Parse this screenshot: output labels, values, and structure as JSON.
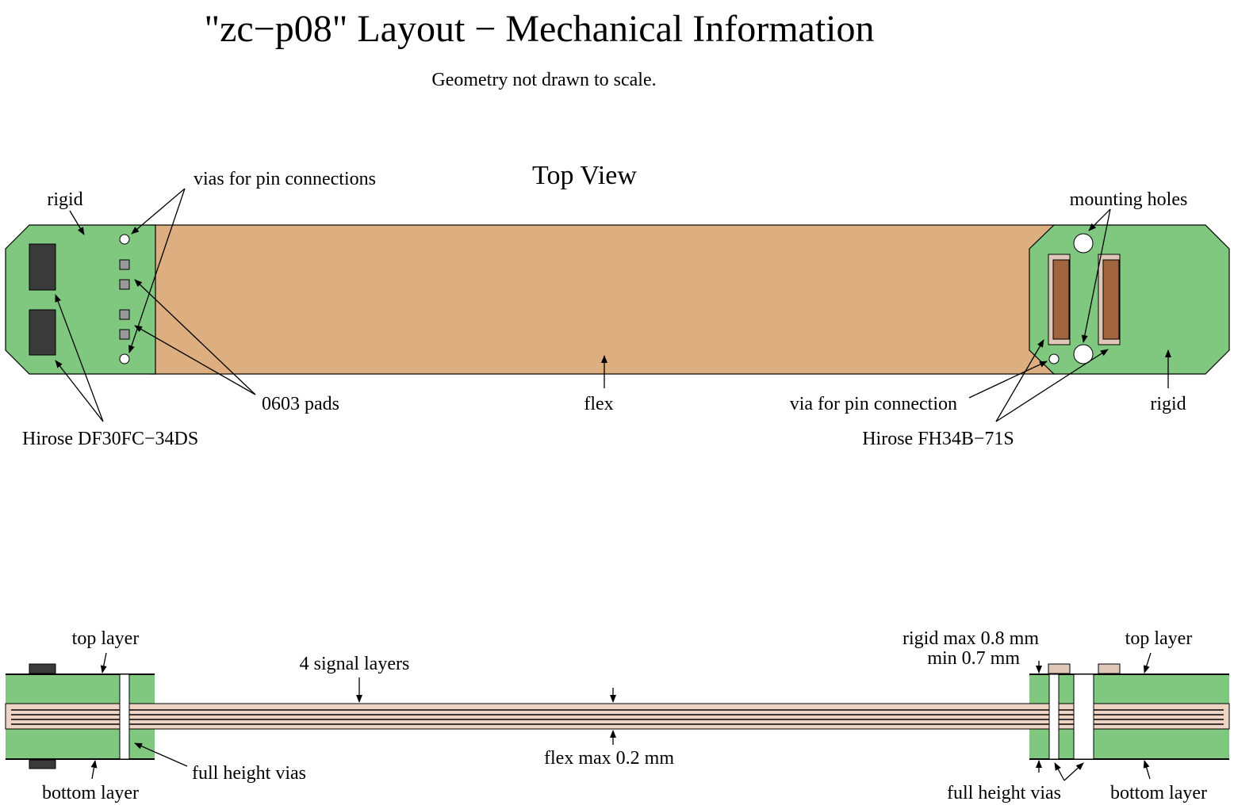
{
  "title": "\"zc−p08\" Layout − Mechanical Information",
  "subtitle": "Geometry not drawn to scale.",
  "top_view": {
    "heading": "Top View",
    "labels": {
      "rigid_left": "rigid",
      "vias_pin_connections": "vias for pin connections",
      "pads_0603": "0603 pads",
      "hirose_df30": "Hirose DF30FC−34DS",
      "flex": "flex",
      "via_pin_connection": "via for pin connection",
      "hirose_fh34": "Hirose FH34B−71S",
      "mounting_holes": "mounting holes",
      "rigid_right": "rigid"
    }
  },
  "side_view": {
    "labels": {
      "top_layer_left": "top layer",
      "bottom_layer_left": "bottom layer",
      "signal_layers": "4 signal layers",
      "full_height_vias_left": "full height vias",
      "flex_max": "flex max 0.2 mm",
      "rigid_max": "rigid max 0.8 mm",
      "rigid_min": "min 0.7 mm",
      "top_layer_right": "top layer",
      "full_height_vias_right": "full height vias",
      "bottom_layer_right": "bottom layer"
    }
  },
  "colors": {
    "rigid": "#80c880",
    "flex": "#ddae80",
    "connector_left": "#3a3a3a",
    "connector_right": "#a0643f",
    "connector_right_frame": "#dfc8b8",
    "pad": "#999999",
    "via": "#ffffff",
    "flex_side": "#eed4c4",
    "component_side": "#dfc8b8"
  }
}
